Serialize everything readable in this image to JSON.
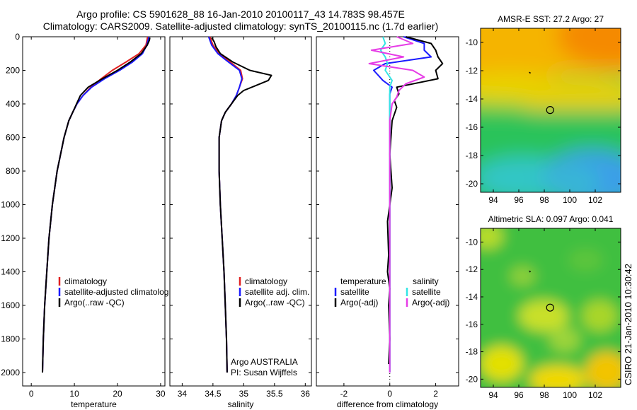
{
  "header": {
    "line1": "Argo profile: CS 5901628_88 16-Jan-2010 20100117_43 14.783S 98.457E",
    "line2": "Climatology: CARS2009. Satellite-adjusted climatology: synTS_20100115.nc (1.7d earlier)"
  },
  "footer": {
    "stamp": "CSIRO 21-Jan-2010 10:30:42"
  },
  "colors": {
    "climatology": "#e02020",
    "satellite": "#1a1aff",
    "argo": "#000000",
    "sal_satellite": "#33e5e5",
    "sal_argo": "#e63ce6"
  },
  "chart_data": [
    {
      "type": "line",
      "xlabel": "temperature",
      "ylabel": "",
      "xlim": [
        -2,
        31
      ],
      "ylim": [
        0,
        2080
      ],
      "xticks": [
        "0",
        "10",
        "20",
        "30"
      ],
      "xtick_values": [
        0,
        10,
        20,
        30
      ],
      "yticks": [
        "0",
        "200",
        "400",
        "600",
        "800",
        "1000",
        "1200",
        "1400",
        "1600",
        "1800",
        "2000"
      ],
      "legend": [
        "climatology",
        "satellite-adjusted climatolog",
        "Argo(..raw -QC)"
      ],
      "legend_placement": "center-right",
      "series": [
        {
          "name": "climatology",
          "color": "climatology",
          "depth": [
            0,
            50,
            100,
            150,
            200,
            250,
            300,
            350,
            400,
            450,
            500,
            600,
            800,
            1000,
            1200,
            1400,
            1600,
            1800,
            2000
          ],
          "values": [
            27.0,
            26.6,
            25.0,
            22.0,
            18.8,
            16.2,
            13.8,
            12.0,
            10.6,
            9.6,
            8.7,
            7.6,
            6.0,
            4.9,
            4.1,
            3.6,
            3.1,
            2.8,
            2.6
          ]
        },
        {
          "name": "satellite-adjusted climatolog",
          "color": "satellite",
          "depth": [
            0,
            50,
            100,
            150,
            200,
            250,
            300,
            350,
            400,
            450,
            500,
            600,
            800,
            1000,
            1200,
            1400,
            1600,
            1800,
            2000
          ],
          "values": [
            27.3,
            26.8,
            25.8,
            23.5,
            20.5,
            17.0,
            14.0,
            12.0,
            10.6,
            9.6,
            8.7,
            7.6,
            6.0,
            4.9,
            4.1,
            3.6,
            3.1,
            2.8,
            2.6
          ]
        },
        {
          "name": "Argo(..raw -QC)",
          "color": "argo",
          "depth": [
            5,
            20,
            50,
            100,
            150,
            200,
            250,
            300,
            350,
            400,
            450,
            500,
            600,
            800,
            1000,
            1200,
            1400,
            1600,
            1800,
            2000
          ],
          "values": [
            27.5,
            27.4,
            26.9,
            25.5,
            23.0,
            20.0,
            16.5,
            13.2,
            11.4,
            10.5,
            9.6,
            8.7,
            7.6,
            6.0,
            4.9,
            4.1,
            3.6,
            3.1,
            2.8,
            2.6
          ]
        }
      ]
    },
    {
      "type": "line",
      "xlabel": "salinity",
      "xlim": [
        33.8,
        36.1
      ],
      "ylim": [
        0,
        2080
      ],
      "xticks": [
        "34",
        "34.5",
        "35",
        "35.5",
        "36"
      ],
      "xtick_values": [
        34,
        34.5,
        35,
        35.5,
        36
      ],
      "legend": [
        "climatology",
        "satellite adj. clim.",
        "Argo(..raw -QC)"
      ],
      "legend_placement": "center-right",
      "annotations": [
        "Argo AUSTRALIA",
        "PI: Susan Wijffels"
      ],
      "series": [
        {
          "name": "climatology",
          "color": "climatology",
          "depth": [
            0,
            50,
            100,
            150,
            200,
            250,
            300,
            350,
            400,
            450,
            500,
            600,
            800,
            1000,
            1200,
            1400,
            1600,
            1800,
            2000
          ],
          "values": [
            34.45,
            34.5,
            34.6,
            34.78,
            34.95,
            34.98,
            34.93,
            34.88,
            34.8,
            34.7,
            34.64,
            34.6,
            34.6,
            34.62,
            34.65,
            34.68,
            34.7,
            34.72,
            34.73
          ]
        },
        {
          "name": "satellite adj. clim.",
          "color": "satellite",
          "depth": [
            0,
            50,
            100,
            150,
            200,
            250,
            300,
            350,
            400,
            450,
            500,
            600,
            800,
            1000,
            1200,
            1400,
            1600,
            1800,
            2000
          ],
          "values": [
            34.43,
            34.48,
            34.58,
            34.75,
            34.93,
            34.97,
            34.93,
            34.88,
            34.8,
            34.7,
            34.64,
            34.6,
            34.6,
            34.62,
            34.65,
            34.68,
            34.7,
            34.72,
            34.73
          ]
        },
        {
          "name": "Argo(..raw -QC)",
          "color": "argo",
          "depth": [
            5,
            30,
            60,
            100,
            150,
            200,
            230,
            260,
            290,
            320,
            350,
            400,
            450,
            500,
            600,
            800,
            1000,
            1200,
            1400,
            1600,
            1800,
            2000
          ],
          "values": [
            34.48,
            34.52,
            34.55,
            34.62,
            34.82,
            35.1,
            35.45,
            35.4,
            35.2,
            35.0,
            34.9,
            34.8,
            34.7,
            34.64,
            34.6,
            34.6,
            34.62,
            34.65,
            34.68,
            34.7,
            34.72,
            34.73
          ]
        }
      ]
    },
    {
      "type": "line",
      "xlabel": "difference from climatology",
      "xlim": [
        -3.2,
        3.0
      ],
      "ylim": [
        0,
        2080
      ],
      "xticks": [
        "-2",
        "0",
        "2"
      ],
      "xtick_values": [
        -2,
        0,
        2
      ],
      "legend_titles": [
        "temperature",
        "salinity"
      ],
      "legend": [
        "satellite",
        "Argo(-adj)",
        "satellite",
        "Argo(-adj)"
      ],
      "series": [
        {
          "name": "satellite",
          "group": "temperature",
          "color": "satellite",
          "depth": [
            0,
            40,
            80,
            120,
            160,
            200,
            260,
            300,
            340,
            400,
            500,
            700,
            1000,
            1400,
            1800,
            2000
          ],
          "values": [
            0.6,
            1.5,
            1.5,
            1.8,
            -0.2,
            -0.7,
            -0.3,
            0.1,
            0.0,
            0.0,
            0.0,
            0.0,
            0.0,
            0.0,
            0.0,
            0.0
          ]
        },
        {
          "name": "Argo(-adj)",
          "group": "temperature",
          "color": "argo",
          "depth": [
            0,
            40,
            80,
            120,
            160,
            200,
            250,
            300,
            340,
            380,
            420,
            500,
            700,
            900,
            1100,
            1300,
            1400,
            1500,
            1600,
            1800,
            1950
          ],
          "values": [
            0.7,
            1.8,
            2.0,
            2.1,
            2.3,
            2.0,
            2.1,
            0.3,
            0.4,
            0.2,
            0.3,
            0.1,
            0.0,
            0.1,
            -0.1,
            -0.05,
            -0.1,
            0.0,
            -0.05,
            0.0,
            -0.05
          ]
        },
        {
          "name": "satellite",
          "group": "salinity",
          "color": "sal_satellite",
          "depth": [
            0,
            40,
            80,
            120,
            160,
            200,
            260,
            300,
            400,
            500,
            700,
            1000,
            1400,
            1800,
            2000
          ],
          "values": [
            -0.3,
            -0.2,
            -0.4,
            -0.2,
            -0.1,
            -0.2,
            0.1,
            0.0,
            0.0,
            0.0,
            0.0,
            0.0,
            0.0,
            0.0,
            0.0
          ]
        },
        {
          "name": "Argo(-adj)",
          "group": "salinity",
          "color": "sal_argo",
          "depth": [
            0,
            40,
            80,
            120,
            160,
            200,
            240,
            280,
            320,
            360,
            400,
            500,
            700,
            1000,
            1400,
            1800,
            2000
          ],
          "values": [
            0.3,
            1.0,
            -0.8,
            0.6,
            -0.9,
            1.0,
            1.5,
            0.7,
            0.4,
            0.3,
            0.1,
            0.0,
            0.0,
            0.0,
            0.0,
            0.0,
            0.0
          ]
        }
      ]
    },
    {
      "type": "heatmap",
      "title": "AMSR-E SST: 27.2  Argo: 27",
      "xlim": [
        93,
        104
      ],
      "ylim": [
        -20.6,
        -9.0
      ],
      "xticks": [
        "94",
        "96",
        "98",
        "100",
        "102"
      ],
      "xtick_values": [
        94,
        96,
        98,
        100,
        102
      ],
      "yticks": [
        "-10",
        "-12",
        "-14",
        "-16",
        "-18",
        "-20"
      ],
      "ytick_values": [
        -10,
        -12,
        -14,
        -16,
        -18,
        -20
      ],
      "marker_lon": 98.457,
      "marker_lat": -14.783
    },
    {
      "type": "heatmap",
      "title": "Altimetric SLA: 0.097  Argo: 0.041",
      "xlim": [
        93,
        104
      ],
      "ylim": [
        -20.6,
        -9.0
      ],
      "xticks": [
        "94",
        "96",
        "98",
        "100",
        "102"
      ],
      "xtick_values": [
        94,
        96,
        98,
        100,
        102
      ],
      "yticks": [
        "-10",
        "-12",
        "-14",
        "-16",
        "-18",
        "-20"
      ],
      "ytick_values": [
        -10,
        -12,
        -14,
        -16,
        -18,
        -20
      ],
      "marker_lon": 98.457,
      "marker_lat": -14.783
    }
  ]
}
